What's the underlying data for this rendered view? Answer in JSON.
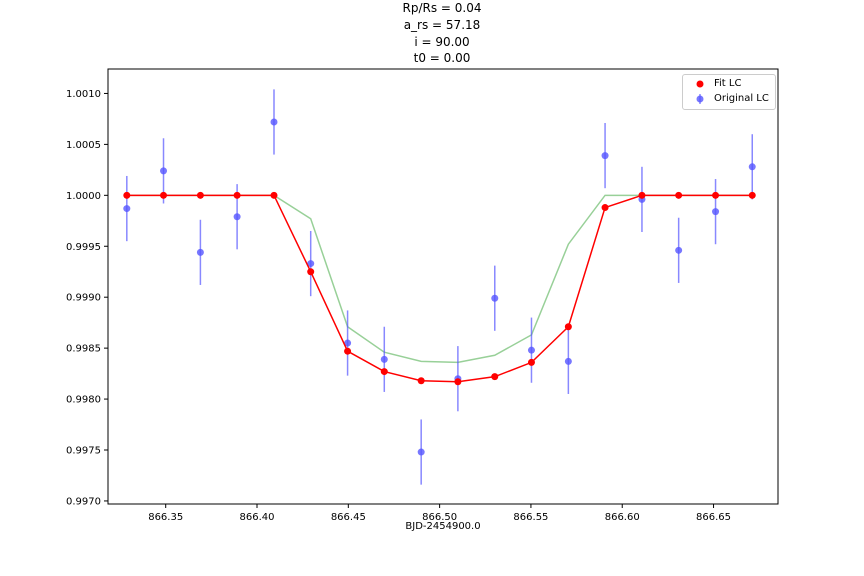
{
  "title_lines": [
    "Rp/Rs = 0.04",
    "a_rs = 57.18",
    "i = 90.00",
    "t0 = 0.00"
  ],
  "colors": {
    "fit": "#ff0000",
    "original": "#5555ff",
    "model": "#98d098"
  },
  "chart_data": {
    "type": "scatter",
    "title": "Rp/Rs = 0.04 | a_rs = 57.18 | i = 90.00 | t0 = 0.00",
    "xlabel": "BJD-2454900.0",
    "ylabel": "",
    "xlim": [
      866.3184,
      866.6853
    ],
    "ylim": [
      0.99697,
      1.00124
    ],
    "x_ticks": [
      866.35,
      866.4,
      866.45,
      866.5,
      866.55,
      866.6,
      866.65
    ],
    "x_tick_labels": [
      "866.35",
      "866.40",
      "866.45",
      "866.50",
      "866.55",
      "866.60",
      "866.65"
    ],
    "y_ticks": [
      0.997,
      0.9975,
      0.998,
      0.9985,
      0.999,
      0.9995,
      1.0,
      1.0005,
      1.001
    ],
    "y_tick_labels": [
      "0.9970",
      "0.9975",
      "0.9980",
      "0.9985",
      "0.9990",
      "0.9995",
      "1.0000",
      "1.0005",
      "1.0010"
    ],
    "grid": false,
    "legend_position": "top-right",
    "x": [
      866.3287,
      866.3488,
      866.369,
      866.3891,
      866.4093,
      866.4294,
      866.4496,
      866.4697,
      866.4899,
      866.51,
      866.5302,
      866.5503,
      866.5705,
      866.5906,
      866.6108,
      866.6309,
      866.6511,
      866.6712
    ],
    "series": [
      {
        "name": "Original LC",
        "kind": "errorbar",
        "values": [
          0.99987,
          1.00024,
          0.99944,
          0.99979,
          1.00072,
          0.99933,
          0.99855,
          0.99839,
          0.99748,
          0.9982,
          0.99899,
          0.99848,
          0.99837,
          1.00039,
          0.99996,
          0.99946,
          0.99984,
          1.00028
        ],
        "errors": [
          0.00032,
          0.00032,
          0.00032,
          0.00032,
          0.00032,
          0.00032,
          0.00032,
          0.00032,
          0.00032,
          0.00032,
          0.00032,
          0.00032,
          0.00032,
          0.00032,
          0.00032,
          0.00032,
          0.00032,
          0.00032
        ]
      },
      {
        "name": "Fit LC",
        "kind": "line+markers",
        "values": [
          1.0,
          1.0,
          1.0,
          1.0,
          1.0,
          0.99925,
          0.99847,
          0.99827,
          0.99818,
          0.99817,
          0.99822,
          0.99836,
          0.99871,
          0.99988,
          1.0,
          1.0,
          1.0,
          1.0
        ]
      },
      {
        "kind": "line",
        "values": [
          1.0,
          1.0,
          1.0,
          1.0,
          1.0,
          0.99977,
          0.99871,
          0.99846,
          0.99837,
          0.99836,
          0.99843,
          0.99863,
          0.99952,
          1.0,
          1.0,
          1.0,
          1.0,
          1.0
        ]
      }
    ]
  },
  "legend": {
    "fit_label": "Fit LC",
    "original_label": "Original LC"
  }
}
